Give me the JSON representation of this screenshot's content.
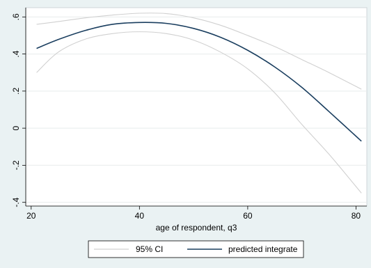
{
  "chart_data": {
    "type": "line",
    "title": "",
    "xlabel": "age of respondent, q3",
    "ylabel": "",
    "xlim": [
      19,
      82
    ],
    "ylim": [
      -0.42,
      0.65
    ],
    "x_ticks": [
      20,
      40,
      60,
      80
    ],
    "x_tick_labels": [
      "20",
      "40",
      "60",
      "80"
    ],
    "y_ticks": [
      -0.4,
      -0.2,
      0,
      0.2,
      0.4,
      0.6
    ],
    "y_tick_labels": [
      "-.4",
      "-.2",
      "0",
      ".2",
      ".4",
      ".6"
    ],
    "grid": "horizontal",
    "legend_position": "bottom",
    "series": [
      {
        "name": "95% CI",
        "role": "upper",
        "color": "#d0d0d0",
        "x": [
          21,
          25,
          30,
          35,
          40,
          45,
          50,
          55,
          60,
          65,
          70,
          75,
          81
        ],
        "y": [
          0.56,
          0.575,
          0.595,
          0.61,
          0.62,
          0.618,
          0.595,
          0.555,
          0.5,
          0.44,
          0.37,
          0.3,
          0.21
        ]
      },
      {
        "name": "95% CI",
        "role": "lower",
        "color": "#d0d0d0",
        "x": [
          21,
          25,
          30,
          35,
          40,
          45,
          50,
          55,
          60,
          65,
          70,
          75,
          81
        ],
        "y": [
          0.3,
          0.41,
          0.48,
          0.51,
          0.52,
          0.51,
          0.475,
          0.41,
          0.32,
          0.19,
          0.02,
          -0.14,
          -0.35
        ]
      },
      {
        "name": "predicted integrate",
        "role": "fit",
        "color": "#1a3e5f",
        "x": [
          21,
          25,
          30,
          35,
          40,
          45,
          50,
          55,
          60,
          65,
          70,
          75,
          81
        ],
        "y": [
          0.43,
          0.478,
          0.527,
          0.56,
          0.57,
          0.565,
          0.538,
          0.49,
          0.42,
          0.33,
          0.22,
          0.09,
          -0.07
        ]
      }
    ],
    "legend": [
      {
        "label": "95% CI",
        "color": "#d0d0d0"
      },
      {
        "label": "predicted integrate",
        "color": "#1a3e5f"
      }
    ]
  }
}
